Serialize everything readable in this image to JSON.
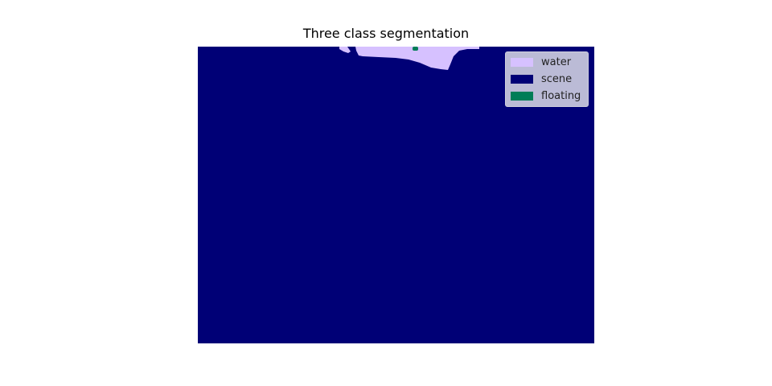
{
  "title": "Three class segmentation",
  "legend": {
    "items": [
      {
        "label": "water",
        "color": "#d6c1ff"
      },
      {
        "label": "scene",
        "color": "#000076"
      },
      {
        "label": "floating",
        "color": "#007d57"
      }
    ]
  },
  "colors": {
    "background": "#000076",
    "water": "#d6c1ff",
    "floating": "#007d57"
  }
}
